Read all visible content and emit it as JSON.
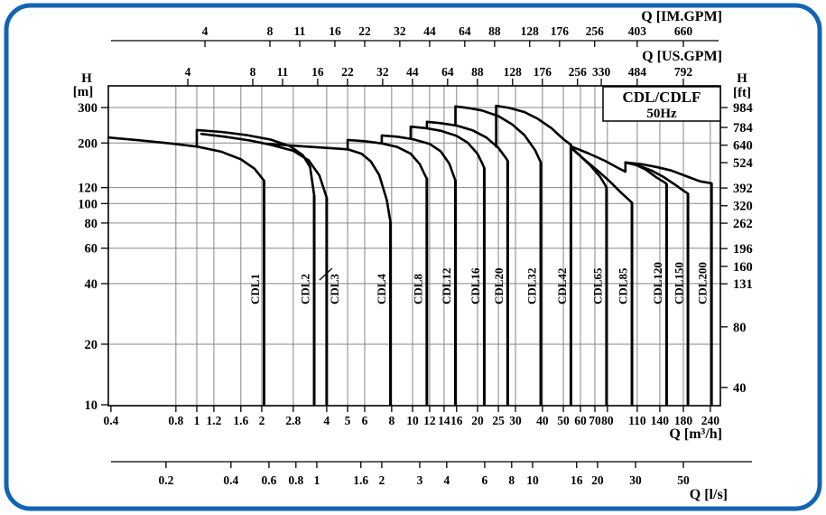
{
  "frame": {
    "border_color": "#1264b2",
    "grid_color": "#868686",
    "curve_color": "#000000",
    "background": "#ffffff"
  },
  "title": {
    "line1": "CDL/CDLF",
    "line2": "50Hz"
  },
  "axes": {
    "top_im_gpm": {
      "label": "Q [IM.GPM]",
      "unit_to_m3h": 0.27277,
      "ticks": [
        4,
        8,
        11,
        16,
        22,
        32,
        44,
        64,
        88,
        128,
        176,
        256,
        403,
        660
      ]
    },
    "top_us_gpm": {
      "label": "Q [US.GPM]",
      "unit_to_m3h": 0.22712,
      "ticks": [
        4,
        8,
        11,
        16,
        22,
        32,
        44,
        64,
        88,
        128,
        176,
        256,
        330,
        484,
        792
      ]
    },
    "left_head_m": {
      "label_line1": "H",
      "label_line2": "[m]",
      "ticks": [
        300,
        200,
        120,
        100,
        80,
        60,
        40,
        20,
        10
      ]
    },
    "right_head_ft": {
      "label_line1": "H",
      "label_line2": "[ft]",
      "unit_to_m": 0.3048,
      "ticks": [
        984,
        784,
        640,
        524,
        392,
        320,
        262,
        196,
        160,
        131,
        80,
        40
      ]
    },
    "bottom_m3h": {
      "label": "Q [m³/h]",
      "ticks": [
        0.4,
        0.8,
        1,
        1.2,
        1.6,
        2,
        2.8,
        4,
        5,
        6,
        8,
        10,
        12,
        14,
        16,
        20,
        25,
        30,
        40,
        50,
        60,
        70,
        80,
        110,
        140,
        180,
        240
      ]
    },
    "bottom_ls": {
      "label": "Q [l/s]",
      "unit_to_m3h": 3.6,
      "ticks": [
        0.2,
        0.4,
        0.6,
        0.8,
        1,
        1.6,
        2,
        3,
        4,
        6,
        8,
        10,
        16,
        20,
        30,
        50
      ]
    }
  },
  "chart_data": {
    "type": "line",
    "title": "CDL/CDLF 50Hz pump family coverage chart",
    "x_scale": "log",
    "y_scale": "log",
    "xlabel": "Q [m³/h]",
    "ylabel": "H [m]",
    "xlim": [
      0.39,
      267
    ],
    "ylim": [
      9.9,
      385
    ],
    "grid": true,
    "series": [
      {
        "name": "CDL1",
        "max_flow_m3h": 2.05,
        "label_side": "left",
        "points": [
          [
            0.39,
            213
          ],
          [
            0.55,
            206
          ],
          [
            0.75,
            199
          ],
          [
            1.0,
            192
          ],
          [
            1.3,
            181
          ],
          [
            1.6,
            166
          ],
          [
            1.85,
            149
          ],
          [
            2.05,
            130
          ]
        ]
      },
      {
        "name": "CDL2",
        "max_flow_m3h": 3.5,
        "label_side": "left",
        "points": [
          [
            1.0,
            192
          ],
          [
            1.0,
            232
          ],
          [
            1.3,
            227
          ],
          [
            1.7,
            219
          ],
          [
            2.2,
            208
          ],
          [
            2.7,
            193
          ],
          [
            3.1,
            174
          ],
          [
            3.35,
            152
          ],
          [
            3.5,
            110
          ]
        ]
      },
      {
        "name": "CDL3",
        "max_flow_m3h": 4.0,
        "label_side": "right",
        "points": [
          [
            1.05,
            222
          ],
          [
            1.35,
            215
          ],
          [
            1.75,
            206
          ],
          [
            2.2,
            196
          ],
          [
            2.8,
            183
          ],
          [
            3.3,
            164
          ],
          [
            3.7,
            138
          ],
          [
            4.0,
            107
          ]
        ]
      },
      {
        "name": "CDL4",
        "max_flow_m3h": 7.9,
        "label_side": "left",
        "points": [
          [
            2.1,
            198
          ],
          [
            2.6,
            195
          ],
          [
            3.2,
            192
          ],
          [
            4.0,
            189
          ],
          [
            5.0,
            186
          ],
          [
            5.8,
            177
          ],
          [
            6.4,
            162
          ],
          [
            7.0,
            139
          ],
          [
            7.6,
            104
          ],
          [
            7.9,
            81
          ]
        ]
      },
      {
        "name": "CDL8",
        "max_flow_m3h": 11.65,
        "label_side": "left",
        "points": [
          [
            5.0,
            186
          ],
          [
            5.0,
            207
          ],
          [
            6.0,
            204
          ],
          [
            7.2,
            199
          ],
          [
            8.5,
            191
          ],
          [
            9.8,
            177
          ],
          [
            10.8,
            157
          ],
          [
            11.4,
            139
          ],
          [
            11.65,
            133
          ]
        ]
      },
      {
        "name": "CDL12",
        "max_flow_m3h": 15.8,
        "label_side": "left",
        "points": [
          [
            7.2,
            199
          ],
          [
            7.2,
            218
          ],
          [
            8.5,
            215
          ],
          [
            10,
            209
          ],
          [
            12,
            198
          ],
          [
            13.5,
            182
          ],
          [
            14.8,
            158
          ],
          [
            15.8,
            130
          ]
        ]
      },
      {
        "name": "CDL16",
        "max_flow_m3h": 21.5,
        "label_side": "left",
        "points": [
          [
            9.8,
            210
          ],
          [
            9.8,
            241
          ],
          [
            11.5,
            237
          ],
          [
            13.5,
            230
          ],
          [
            16,
            217
          ],
          [
            18,
            201
          ],
          [
            20,
            177
          ],
          [
            21,
            159
          ],
          [
            21.5,
            150
          ]
        ]
      },
      {
        "name": "CDL20",
        "max_flow_m3h": 27.6,
        "label_side": "left",
        "points": [
          [
            11.65,
            237
          ],
          [
            11.65,
            255
          ],
          [
            13.5,
            251
          ],
          [
            16,
            244
          ],
          [
            19,
            231
          ],
          [
            22,
            213
          ],
          [
            25,
            189
          ],
          [
            27,
            169
          ],
          [
            27.6,
            163
          ]
        ]
      },
      {
        "name": "CDL32",
        "max_flow_m3h": 39.3,
        "label_side": "left",
        "points": [
          [
            15.8,
            244
          ],
          [
            15.8,
            304
          ],
          [
            18,
            299
          ],
          [
            21,
            290
          ],
          [
            25,
            272
          ],
          [
            29,
            247
          ],
          [
            33,
            219
          ],
          [
            37,
            184
          ],
          [
            39.3,
            160
          ]
        ]
      },
      {
        "name": "CDL42",
        "max_flow_m3h": 54.2,
        "label_side": "left",
        "points": [
          [
            24.4,
            192
          ],
          [
            24.4,
            306
          ],
          [
            28,
            299
          ],
          [
            33,
            285
          ],
          [
            38,
            264
          ],
          [
            44,
            237
          ],
          [
            50,
            209
          ],
          [
            54.2,
            196
          ]
        ]
      },
      {
        "name": "CDL65",
        "max_flow_m3h": 79.3,
        "label_side": "left",
        "points": [
          [
            54.5,
            190
          ],
          [
            60,
            172
          ],
          [
            67,
            154
          ],
          [
            74,
            136
          ],
          [
            78,
            124
          ],
          [
            79.3,
            120
          ]
        ]
      },
      {
        "name": "CDL85",
        "max_flow_m3h": 104,
        "label_side": "left",
        "points": [
          [
            54.5,
            188
          ],
          [
            62,
            167
          ],
          [
            72,
            146
          ],
          [
            82,
            129
          ],
          [
            92,
            114
          ],
          [
            100,
            105
          ],
          [
            104,
            101
          ]
        ]
      },
      {
        "name": "CDL120",
        "max_flow_m3h": 150.5,
        "label_side": "left",
        "points": [
          [
            54.5,
            192
          ],
          [
            65,
            178
          ],
          [
            78,
            163
          ],
          [
            90,
            150
          ],
          [
            97,
            144
          ],
          [
            97,
            160
          ],
          [
            108,
            156
          ],
          [
            120,
            148
          ],
          [
            135,
            135
          ],
          [
            148,
            127
          ],
          [
            150.5,
            125
          ]
        ]
      },
      {
        "name": "CDL150",
        "max_flow_m3h": 189,
        "label_side": "left",
        "points": [
          [
            97,
            160
          ],
          [
            112,
            154
          ],
          [
            128,
            146
          ],
          [
            145,
            136
          ],
          [
            165,
            124
          ],
          [
            182,
            115
          ],
          [
            189,
            112
          ]
        ]
      },
      {
        "name": "CDL200",
        "max_flow_m3h": 243,
        "label_side": "left",
        "points": [
          [
            97,
            160
          ],
          [
            115,
            157
          ],
          [
            135,
            152
          ],
          [
            158,
            146
          ],
          [
            185,
            137
          ],
          [
            215,
            129
          ],
          [
            243,
            126
          ]
        ]
      }
    ]
  }
}
